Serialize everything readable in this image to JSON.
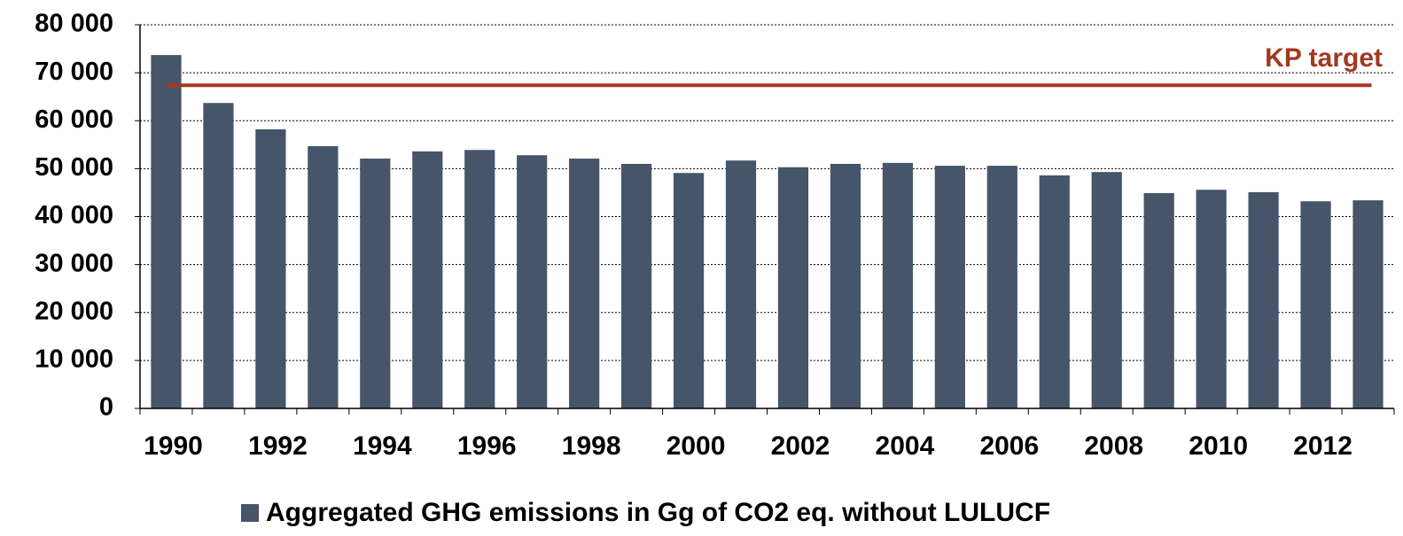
{
  "chart_data": {
    "type": "bar",
    "categories": [
      "1990",
      null,
      "1992",
      null,
      "1994",
      null,
      "1996",
      null,
      "1998",
      null,
      "2000",
      null,
      "2002",
      null,
      "2004",
      null,
      "2006",
      null,
      "2008",
      null,
      "2010",
      null,
      "2012",
      null
    ],
    "series": [
      {
        "name": "Aggregated GHG emissions in Gg of CO2 eq. without LULUCF",
        "color": "#465569",
        "values": [
          73700,
          63700,
          58200,
          54700,
          52100,
          53600,
          53900,
          52800,
          52100,
          51000,
          49100,
          51700,
          50300,
          51000,
          51200,
          50600,
          50600,
          48600,
          49300,
          44900,
          45600,
          45100,
          43200,
          43400
        ]
      }
    ],
    "target": {
      "label": "KP target",
      "value": 67400,
      "color": "#a3381f"
    },
    "ylim": [
      0,
      80000
    ],
    "yticks": [
      0,
      {
        "value": 10000,
        "label": "10 000"
      },
      {
        "value": 20000,
        "label": "20 000"
      },
      {
        "value": 30000,
        "label": "30 000"
      },
      {
        "value": 40000,
        "label": "40 000"
      },
      {
        "value": 50000,
        "label": "50 000"
      },
      {
        "value": 60000,
        "label": "60 000"
      },
      {
        "value": 70000,
        "label": "70 000"
      },
      {
        "value": 80000,
        "label": "80 000"
      }
    ],
    "grid": true
  }
}
